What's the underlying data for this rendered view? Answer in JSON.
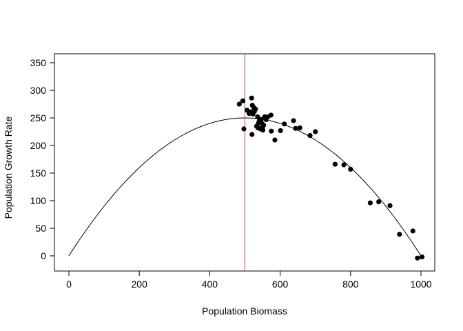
{
  "chart_data": {
    "type": "scatter",
    "title": "",
    "xlabel": "Population Biomass",
    "ylabel": "Population Growth Rate",
    "xlim": [
      0,
      1000
    ],
    "ylim": [
      0,
      350
    ],
    "x_ticks": [
      0,
      200,
      400,
      600,
      800,
      1000
    ],
    "y_ticks": [
      0,
      50,
      100,
      150,
      200,
      250,
      300,
      350
    ],
    "grid": false,
    "legend": "none",
    "points": [
      [
        484,
        275
      ],
      [
        494,
        281
      ],
      [
        497,
        230
      ],
      [
        506,
        264
      ],
      [
        512,
        258
      ],
      [
        517,
        261
      ],
      [
        519,
        286
      ],
      [
        520,
        220
      ],
      [
        521,
        273
      ],
      [
        523,
        257
      ],
      [
        525,
        269
      ],
      [
        527,
        262
      ],
      [
        530,
        266
      ],
      [
        533,
        235
      ],
      [
        536,
        252
      ],
      [
        537,
        232
      ],
      [
        539,
        241
      ],
      [
        541,
        245
      ],
      [
        544,
        230
      ],
      [
        546,
        247
      ],
      [
        548,
        240
      ],
      [
        550,
        233
      ],
      [
        551,
        228
      ],
      [
        553,
        237
      ],
      [
        556,
        252
      ],
      [
        560,
        247
      ],
      [
        565,
        252
      ],
      [
        574,
        255
      ],
      [
        575,
        226
      ],
      [
        585,
        210
      ],
      [
        601,
        227
      ],
      [
        612,
        239
      ],
      [
        638,
        245
      ],
      [
        644,
        231
      ],
      [
        656,
        232
      ],
      [
        685,
        218
      ],
      [
        700,
        225
      ],
      [
        756,
        166
      ],
      [
        781,
        165
      ],
      [
        800,
        157
      ],
      [
        856,
        96
      ],
      [
        880,
        98
      ],
      [
        912,
        91
      ],
      [
        939,
        39
      ],
      [
        977,
        45
      ],
      [
        990,
        -4
      ],
      [
        1003,
        -2
      ]
    ],
    "curve": {
      "name": "",
      "equation": "y = x * (1 - x / 1000)",
      "x_range": [
        0,
        1000
      ],
      "color": "#000000"
    },
    "reference_lines": [
      {
        "orientation": "vertical",
        "x": 500,
        "color": "#c0392b"
      }
    ],
    "point_color": "#000000"
  }
}
